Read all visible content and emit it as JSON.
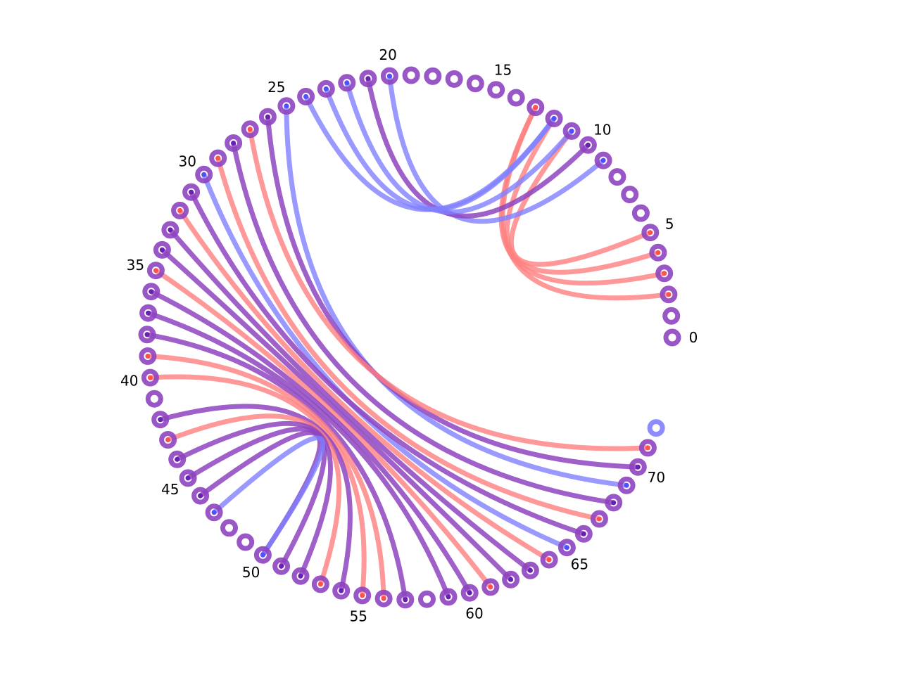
{
  "diagram": {
    "type": "arc-diagram",
    "node_count": 73,
    "labels": [
      "0",
      "5",
      "10",
      "15",
      "20",
      "25",
      "30",
      "35",
      "40",
      "45",
      "50",
      "55",
      "60",
      "65",
      "70"
    ],
    "colors": {
      "purple": "#8e44c0",
      "red": "#ff8080",
      "blue": "#8080ff",
      "red_dot": "#ff5050",
      "blue_dot": "#5050ff",
      "purple_dot": "#6a20b0"
    },
    "node_kinds": {
      "purple": [
        0,
        1,
        2,
        3,
        4,
        5,
        6,
        7,
        8,
        9,
        10,
        11,
        12,
        13,
        14,
        15,
        16,
        17,
        18,
        19,
        20,
        21,
        22,
        23,
        24,
        25,
        26,
        27,
        28,
        29,
        30,
        31,
        32,
        33,
        34,
        35,
        36,
        37,
        38,
        39,
        40,
        41,
        42,
        43,
        44,
        45,
        46,
        47,
        48,
        49,
        50,
        51,
        52,
        53,
        54,
        55,
        56,
        57,
        58,
        59,
        60,
        61,
        62,
        63,
        64,
        65,
        66,
        67,
        68,
        69,
        70,
        71
      ],
      "blue": [
        72
      ]
    },
    "links": [
      {
        "a": 2,
        "b": 13,
        "color": "red"
      },
      {
        "a": 3,
        "b": 13,
        "color": "red"
      },
      {
        "a": 4,
        "b": 12,
        "color": "red"
      },
      {
        "a": 5,
        "b": 11,
        "color": "red"
      },
      {
        "a": 9,
        "b": 20,
        "color": "blue"
      },
      {
        "a": 10,
        "b": 21,
        "color": "purple"
      },
      {
        "a": 11,
        "b": 22,
        "color": "blue"
      },
      {
        "a": 12,
        "b": 23,
        "color": "blue"
      },
      {
        "a": 12,
        "b": 24,
        "color": "blue"
      },
      {
        "a": 25,
        "b": 69,
        "color": "blue"
      },
      {
        "a": 26,
        "b": 70,
        "color": "purple"
      },
      {
        "a": 27,
        "b": 71,
        "color": "red"
      },
      {
        "a": 28,
        "b": 68,
        "color": "purple"
      },
      {
        "a": 29,
        "b": 67,
        "color": "red"
      },
      {
        "a": 30,
        "b": 65,
        "color": "blue"
      },
      {
        "a": 31,
        "b": 66,
        "color": "purple"
      },
      {
        "a": 32,
        "b": 64,
        "color": "red"
      },
      {
        "a": 33,
        "b": 63,
        "color": "purple"
      },
      {
        "a": 34,
        "b": 62,
        "color": "purple"
      },
      {
        "a": 35,
        "b": 61,
        "color": "red"
      },
      {
        "a": 36,
        "b": 60,
        "color": "purple"
      },
      {
        "a": 37,
        "b": 59,
        "color": "purple"
      },
      {
        "a": 38,
        "b": 57,
        "color": "purple"
      },
      {
        "a": 39,
        "b": 56,
        "color": "red"
      },
      {
        "a": 40,
        "b": 55,
        "color": "red"
      },
      {
        "a": 42,
        "b": 54,
        "color": "purple"
      },
      {
        "a": 43,
        "b": 53,
        "color": "red"
      },
      {
        "a": 44,
        "b": 52,
        "color": "purple"
      },
      {
        "a": 45,
        "b": 51,
        "color": "purple"
      },
      {
        "a": 46,
        "b": 50,
        "color": "purple"
      },
      {
        "a": 47,
        "b": 50,
        "color": "blue"
      }
    ]
  }
}
